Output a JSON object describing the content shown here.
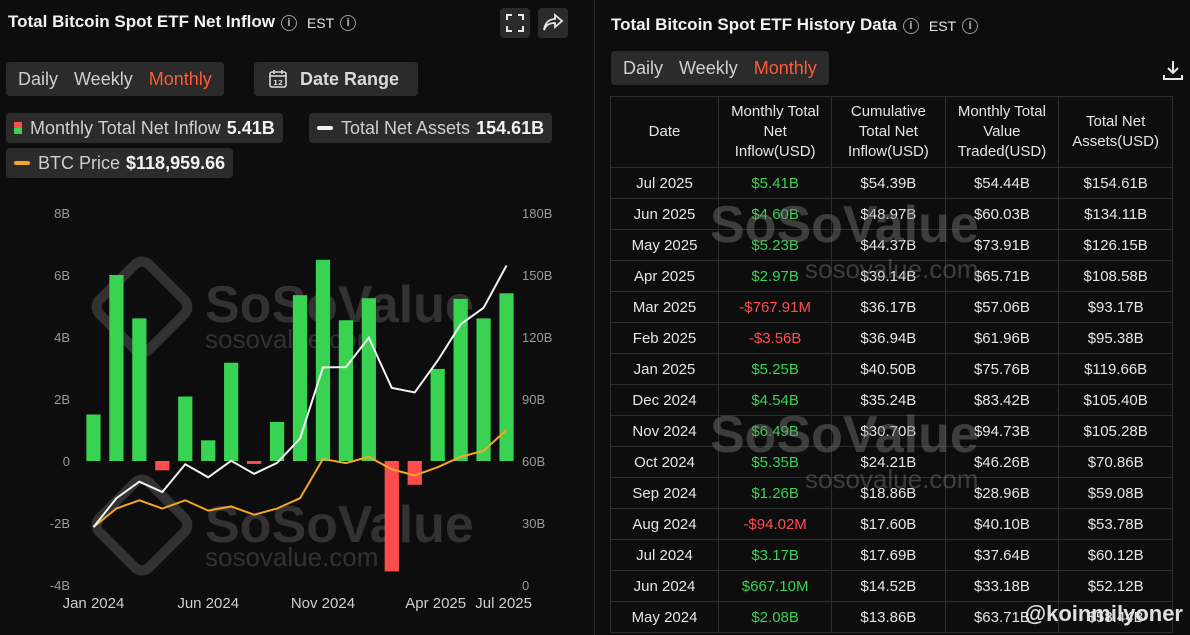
{
  "left": {
    "title": "Total Bitcoin Spot ETF Net Inflow",
    "timezone": "EST",
    "tabs": [
      "Daily",
      "Weekly",
      "Monthly"
    ],
    "active_tab": "Monthly",
    "date_range_label": "Date Range",
    "date_icon_text": "12",
    "legend": {
      "inflow_label": "Monthly Total Net Inflow",
      "inflow_value": "5.41B",
      "assets_label": "Total Net Assets",
      "assets_value": "154.61B",
      "btc_label": "BTC Price",
      "btc_value": "$118,959.66"
    }
  },
  "right": {
    "title": "Total Bitcoin Spot ETF History Data",
    "timezone": "EST",
    "tabs": [
      "Daily",
      "Weekly",
      "Monthly"
    ],
    "active_tab": "Monthly",
    "columns": [
      "Date",
      "Monthly Total Net Inflow(USD)",
      "Cumulative Total Net Inflow(USD)",
      "Monthly Total Value Traded(USD)",
      "Total Net Assets(USD)"
    ],
    "rows": [
      [
        "Jul 2025",
        "$5.41B",
        "$54.39B",
        "$54.44B",
        "$154.61B"
      ],
      [
        "Jun 2025",
        "$4.60B",
        "$48.97B",
        "$60.03B",
        "$134.11B"
      ],
      [
        "May 2025",
        "$5.23B",
        "$44.37B",
        "$73.91B",
        "$126.15B"
      ],
      [
        "Apr 2025",
        "$2.97B",
        "$39.14B",
        "$65.71B",
        "$108.58B"
      ],
      [
        "Mar 2025",
        "-$767.91M",
        "$36.17B",
        "$57.06B",
        "$93.17B"
      ],
      [
        "Feb 2025",
        "-$3.56B",
        "$36.94B",
        "$61.96B",
        "$95.38B"
      ],
      [
        "Jan 2025",
        "$5.25B",
        "$40.50B",
        "$75.76B",
        "$119.66B"
      ],
      [
        "Dec 2024",
        "$4.54B",
        "$35.24B",
        "$83.42B",
        "$105.40B"
      ],
      [
        "Nov 2024",
        "$6.49B",
        "$30.70B",
        "$94.73B",
        "$105.28B"
      ],
      [
        "Oct 2024",
        "$5.35B",
        "$24.21B",
        "$46.26B",
        "$70.86B"
      ],
      [
        "Sep 2024",
        "$1.26B",
        "$18.86B",
        "$28.96B",
        "$59.08B"
      ],
      [
        "Aug 2024",
        "-$94.02M",
        "$17.60B",
        "$40.10B",
        "$53.78B"
      ],
      [
        "Jul 2024",
        "$3.17B",
        "$17.69B",
        "$37.64B",
        "$60.12B"
      ],
      [
        "Jun 2024",
        "$667.10M",
        "$14.52B",
        "$33.18B",
        "$52.12B"
      ],
      [
        "May 2024",
        "$2.08B",
        "$13.86B",
        "$63.71B",
        "$58.44B"
      ]
    ]
  },
  "watermark": {
    "brand": "SoSoValue",
    "site": "sosovalue.com",
    "credit": "@koinmilyoner"
  },
  "colors": {
    "inflow_positive": "#39d353",
    "inflow_negative": "#ff4d4d",
    "assets_line": "#f2f2f2",
    "btc_line": "#f5a623",
    "accent": "#ff5a36"
  },
  "chart_data": {
    "type": "bar",
    "categories": [
      "Jan 2024",
      "Feb 2024",
      "Mar 2024",
      "Apr 2024",
      "May 2024",
      "Jun 2024",
      "Jul 2024",
      "Aug 2024",
      "Sep 2024",
      "Oct 2024",
      "Nov 2024",
      "Dec 2024",
      "Jan 2025",
      "Feb 2025",
      "Mar 2025",
      "Apr 2025",
      "May 2025",
      "Jun 2025",
      "Jul 2025"
    ],
    "x_tick_labels": [
      "Jan 2024",
      "Jun 2024",
      "Nov 2024",
      "Apr 2025",
      "Jul 2025"
    ],
    "y_left_ticks": [
      "8B",
      "6B",
      "4B",
      "2B",
      "0",
      "-2B",
      "-4B"
    ],
    "y_right_ticks": [
      "180B",
      "150B",
      "120B",
      "90B",
      "60B",
      "30B",
      "0"
    ],
    "ylim_left": [
      -4,
      8
    ],
    "ylim_right": [
      0,
      180
    ],
    "series": [
      {
        "name": "Monthly Total Net Inflow",
        "type": "bar",
        "axis": "left",
        "values": [
          1.5,
          6.0,
          4.6,
          -0.3,
          2.08,
          0.667,
          3.17,
          -0.094,
          1.26,
          5.35,
          6.49,
          4.54,
          5.25,
          -3.56,
          -0.768,
          2.97,
          5.23,
          4.6,
          5.41
        ]
      },
      {
        "name": "Total Net Assets",
        "type": "line",
        "axis": "right",
        "values": [
          28,
          42,
          50,
          45,
          58.44,
          52.12,
          60.12,
          53.78,
          59.08,
          70.86,
          105.28,
          105.4,
          119.66,
          95.38,
          93.17,
          108.58,
          126.15,
          134.11,
          154.61
        ]
      },
      {
        "name": "BTC Price",
        "type": "line",
        "axis": "right",
        "values": [
          28,
          37,
          41,
          37,
          41,
          36,
          38,
          34,
          37,
          42,
          61,
          59,
          62,
          56,
          53,
          57,
          62,
          65,
          75
        ]
      }
    ]
  }
}
